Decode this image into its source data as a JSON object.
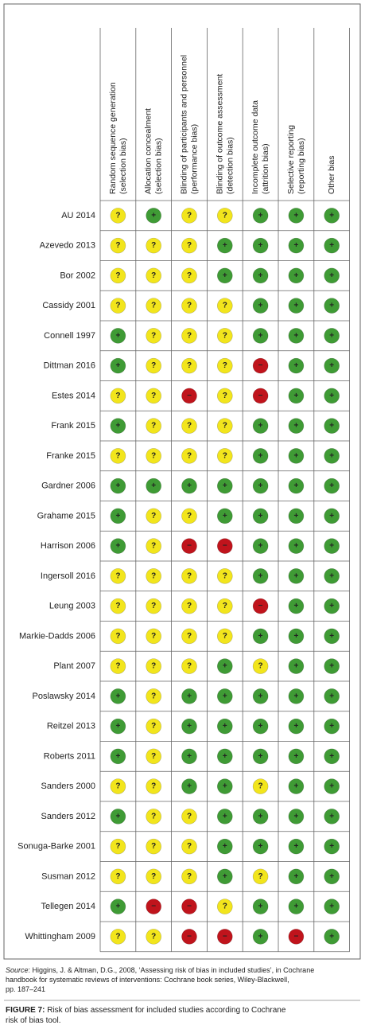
{
  "figure": {
    "columns": [
      [
        "Random sequence generation",
        "(selection bias)"
      ],
      [
        "Allocation concealment",
        "(selection bias)"
      ],
      [
        "Blinding of participants and personnel",
        "(performance bias)"
      ],
      [
        "Blinding of outcome assessment",
        "(detection bias)"
      ],
      [
        "Incomplete outcome data",
        "(attrition bias)"
      ],
      [
        "Selective reporting",
        "(reporting bias)"
      ],
      [
        "Other bias"
      ]
    ],
    "judgment_colors": {
      "+": "#3f9b35",
      "?": "#f2e51c",
      "−": "#c0141c"
    },
    "rows": [
      {
        "study": "AU 2014",
        "judgments": [
          "?",
          "+",
          "?",
          "?",
          "+",
          "+",
          "+"
        ]
      },
      {
        "study": "Azevedo 2013",
        "judgments": [
          "?",
          "?",
          "?",
          "+",
          "+",
          "+",
          "+"
        ]
      },
      {
        "study": "Bor 2002",
        "judgments": [
          "?",
          "?",
          "?",
          "+",
          "+",
          "+",
          "+"
        ]
      },
      {
        "study": "Cassidy 2001",
        "judgments": [
          "?",
          "?",
          "?",
          "?",
          "+",
          "+",
          "+"
        ]
      },
      {
        "study": "Connell 1997",
        "judgments": [
          "+",
          "?",
          "?",
          "?",
          "+",
          "+",
          "+"
        ]
      },
      {
        "study": "Dittman 2016",
        "judgments": [
          "+",
          "?",
          "?",
          "?",
          "−",
          "+",
          "+"
        ]
      },
      {
        "study": "Estes 2014",
        "judgments": [
          "?",
          "?",
          "−",
          "?",
          "−",
          "+",
          "+"
        ]
      },
      {
        "study": "Frank 2015",
        "judgments": [
          "+",
          "?",
          "?",
          "?",
          "+",
          "+",
          "+"
        ]
      },
      {
        "study": "Franke 2015",
        "judgments": [
          "?",
          "?",
          "?",
          "?",
          "+",
          "+",
          "+"
        ]
      },
      {
        "study": "Gardner 2006",
        "judgments": [
          "+",
          "+",
          "+",
          "+",
          "+",
          "+",
          "+"
        ]
      },
      {
        "study": "Grahame 2015",
        "judgments": [
          "+",
          "?",
          "?",
          "+",
          "+",
          "+",
          "+"
        ]
      },
      {
        "study": "Harrison 2006",
        "judgments": [
          "+",
          "?",
          "−",
          "−",
          "+",
          "+",
          "+"
        ]
      },
      {
        "study": "Ingersoll 2016",
        "judgments": [
          "?",
          "?",
          "?",
          "?",
          "+",
          "+",
          "+"
        ]
      },
      {
        "study": "Leung 2003",
        "judgments": [
          "?",
          "?",
          "?",
          "?",
          "−",
          "+",
          "+"
        ]
      },
      {
        "study": "Markie-Dadds 2006",
        "judgments": [
          "?",
          "?",
          "?",
          "?",
          "+",
          "+",
          "+"
        ]
      },
      {
        "study": "Plant 2007",
        "judgments": [
          "?",
          "?",
          "?",
          "+",
          "?",
          "+",
          "+"
        ]
      },
      {
        "study": "Poslawsky 2014",
        "judgments": [
          "+",
          "?",
          "+",
          "+",
          "+",
          "+",
          "+"
        ]
      },
      {
        "study": "Reitzel 2013",
        "judgments": [
          "+",
          "?",
          "+",
          "+",
          "+",
          "+",
          "+"
        ]
      },
      {
        "study": "Roberts 2011",
        "judgments": [
          "+",
          "?",
          "+",
          "+",
          "+",
          "+",
          "+"
        ]
      },
      {
        "study": "Sanders 2000",
        "judgments": [
          "?",
          "?",
          "+",
          "+",
          "?",
          "+",
          "+"
        ]
      },
      {
        "study": "Sanders 2012",
        "judgments": [
          "+",
          "?",
          "?",
          "+",
          "+",
          "+",
          "+"
        ]
      },
      {
        "study": "Sonuga-Barke 2001",
        "judgments": [
          "?",
          "?",
          "?",
          "+",
          "+",
          "+",
          "+"
        ]
      },
      {
        "study": "Susman 2012",
        "judgments": [
          "?",
          "?",
          "?",
          "+",
          "?",
          "+",
          "+"
        ]
      },
      {
        "study": "Tellegen 2014",
        "judgments": [
          "+",
          "−",
          "−",
          "?",
          "+",
          "+",
          "+"
        ]
      },
      {
        "study": "Whittingham 2009",
        "judgments": [
          "?",
          "?",
          "−",
          "−",
          "+",
          "−",
          "+"
        ]
      }
    ],
    "source_label": "Source",
    "source_lines": [
      ": Higgins, J. & Altman, D.G., 2008, ‘Assessing risk of bias in included studies’, in Cochrane",
      "handbook for systematic reviews of interventions: Cochrane book series, Wiley-Blackwell,",
      "pp. 187–241"
    ],
    "caption_label": "FIGURE 7:",
    "caption_lines": [
      " Risk of bias assessment for included studies according to Cochrane",
      "risk of bias tool."
    ]
  }
}
